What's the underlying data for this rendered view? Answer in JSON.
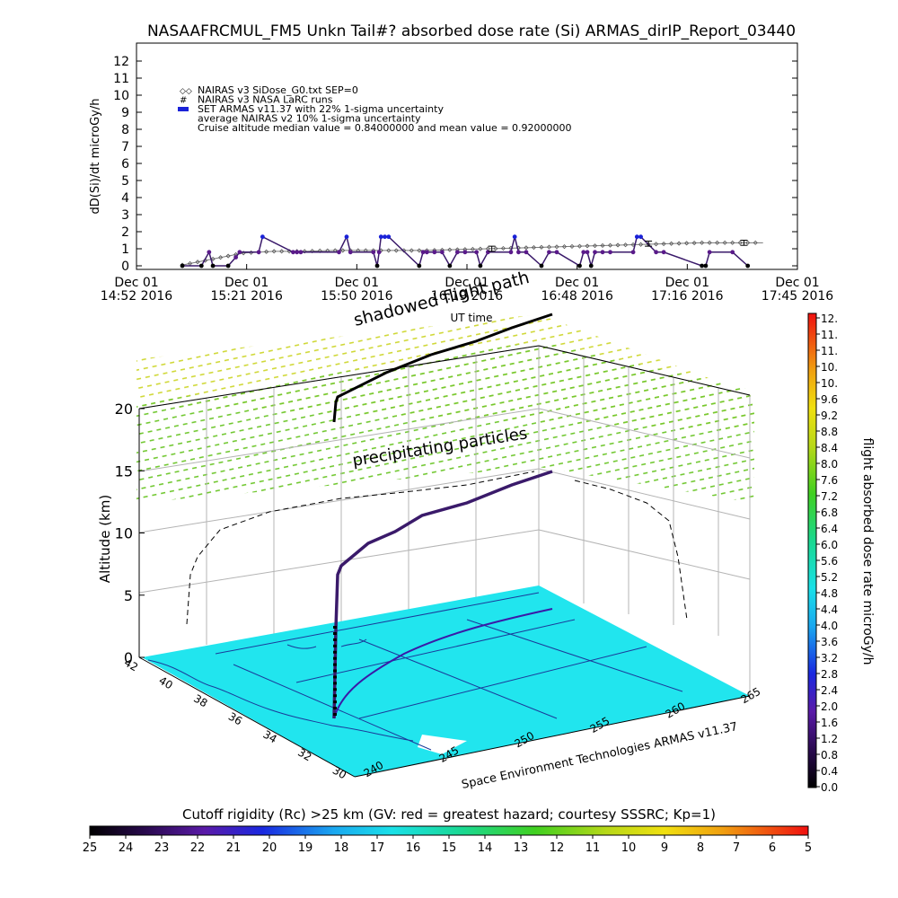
{
  "title": "NASAAFRCMUL_FM5 Unkn Tail#? absorbed dose rate (Si) ARMAS_dirIP_Report_03440",
  "colors": {
    "armas": "#1a22d8",
    "armas_line": "#3a1a6a",
    "model": "#7a7a7a",
    "particles": "#72c832",
    "particles_top": "#e0d832",
    "map": "#21e5ee",
    "coast": "#1a3a9a",
    "grid": "#b4b4b4"
  },
  "chart_data": [
    {
      "type": "line",
      "ylabel": "dD(Si)/dt microGy/h",
      "xlabel": "UT time",
      "ylim": [
        0,
        12
      ],
      "yticks": [
        "0",
        "1",
        "2",
        "3",
        "4",
        "5",
        "6",
        "7",
        "8",
        "9",
        "10",
        "11",
        "12"
      ],
      "xticks": [
        {
          "day": "Dec 01",
          "time": "14:52 2016"
        },
        {
          "day": "Dec 01",
          "time": "15:21 2016"
        },
        {
          "day": "Dec 01",
          "time": "15:50 2016"
        },
        {
          "day": "Dec 01",
          "time": "16:19 2016"
        },
        {
          "day": "Dec 01",
          "time": "16:48 2016"
        },
        {
          "day": "Dec 01",
          "time": "17:16 2016"
        },
        {
          "day": "Dec 01",
          "time": "17:45 2016"
        }
      ],
      "xlim_minutes": [
        0,
        173
      ],
      "legend": [
        "NAIRAS v3 SiDose_G0.txt SEP=0",
        "NAIRAS v3 NASA LaRC runs",
        "SET ARMAS v11.37 with 22% 1-sigma uncertainty",
        "average NAIRAS v2 10% 1-sigma uncertainty",
        "Cruise altitude median value = 0.84000000 and mean value = 0.92000000"
      ],
      "legend_placement": "top-left",
      "series": [
        {
          "name": "NAIRAS v3 SiDose_G0.txt SEP=0",
          "x_minutes": [
            12,
            20,
            28,
            36,
            44,
            52,
            60,
            68,
            76,
            84,
            92,
            100,
            108,
            116,
            124,
            132,
            140,
            148,
            156,
            164
          ],
          "values": [
            0.05,
            0.4,
            0.75,
            0.85,
            0.85,
            0.9,
            0.9,
            0.9,
            0.9,
            0.95,
            1.0,
            1.05,
            1.1,
            1.15,
            1.2,
            1.25,
            1.3,
            1.35,
            1.35,
            1.35
          ]
        },
        {
          "name": "SET ARMAS v11.37 with 22% 1-sigma uncertainty",
          "x_minutes": [
            12,
            17,
            19,
            20,
            24,
            26,
            27,
            32,
            33,
            41,
            42,
            43,
            53,
            55,
            56,
            62,
            63,
            63.5,
            64,
            65,
            66,
            74,
            75,
            76,
            78,
            80,
            82,
            84,
            86,
            89,
            90,
            92,
            98,
            99,
            100,
            102,
            106,
            108,
            110,
            116,
            117,
            118,
            119,
            120,
            122,
            124,
            130,
            131,
            132,
            136,
            138,
            148,
            149,
            150,
            156,
            160
          ],
          "values": [
            0,
            0,
            0.8,
            0,
            0,
            0.5,
            0.8,
            0.8,
            1.7,
            0.8,
            0.8,
            0.8,
            0.8,
            1.7,
            0.8,
            0.8,
            0,
            0.8,
            1.7,
            1.7,
            1.7,
            0,
            0.8,
            0.8,
            0.8,
            0.8,
            0,
            0.8,
            0.8,
            0.8,
            0,
            0.8,
            0.8,
            1.7,
            0.8,
            0.8,
            0,
            0.8,
            0.8,
            0,
            0.8,
            0.8,
            0,
            0.8,
            0.8,
            0.8,
            0.8,
            1.7,
            1.7,
            0.8,
            0.8,
            0,
            0,
            0.8,
            0.8,
            0
          ]
        }
      ],
      "error_bars": [
        {
          "x_minutes": 93,
          "y": 1.0,
          "err": 0.15
        },
        {
          "x_minutes": 134,
          "y": 1.3,
          "err": 0.15
        },
        {
          "x_minutes": 159,
          "y": 1.35,
          "err": 0.15
        }
      ]
    },
    {
      "type": "scatter",
      "zlabel": "Altitude (km)",
      "zlim": [
        0,
        20
      ],
      "zticks": [
        "0",
        "5",
        "10",
        "15",
        "20"
      ],
      "lat_ticks": [
        "42",
        "40",
        "38",
        "36",
        "34",
        "32",
        "30"
      ],
      "lon_ticks": [
        "240",
        "245",
        "250",
        "255",
        "260",
        "265"
      ],
      "annotations": [
        "shadowed flight path",
        "precipitating particles"
      ],
      "credit": "Space Environment Technologies ARMAS v11.37",
      "flight_path_alt_km": [
        0,
        0.5,
        1,
        1.5,
        2,
        2.5,
        3,
        3.5,
        4,
        4.5,
        5,
        5.5,
        6,
        6.5,
        7,
        7.5,
        8,
        8.5,
        9,
        9.5,
        10,
        10.5,
        11,
        11.5,
        12,
        12.5,
        13,
        13.5,
        14,
        14.5,
        15
      ]
    }
  ],
  "colorbar_dose": {
    "label": "flight absorbed dose rate microGy/h",
    "ticks": [
      "0.0",
      "0.4",
      "0.8",
      "1.2",
      "1.6",
      "2.0",
      "2.4",
      "2.8",
      "3.2",
      "3.6",
      "4.0",
      "4.4",
      "4.8",
      "5.2",
      "5.6",
      "6.0",
      "6.4",
      "6.8",
      "7.2",
      "7.6",
      "8.0",
      "8.4",
      "8.8",
      "9.2",
      "9.6",
      "10.",
      "10.",
      "11.",
      "11.",
      "12."
    ]
  },
  "colorbar_cutoff": {
    "title": "Cutoff rigidity (Rc) >25 km (GV: red = greatest hazard; courtesy SSSRC; Kp=1)",
    "ticks": [
      "25",
      "24",
      "23",
      "22",
      "21",
      "20",
      "19",
      "18",
      "17",
      "16",
      "15",
      "14",
      "13",
      "12",
      "11",
      "10",
      "9",
      "8",
      "7",
      "6",
      "5"
    ]
  }
}
